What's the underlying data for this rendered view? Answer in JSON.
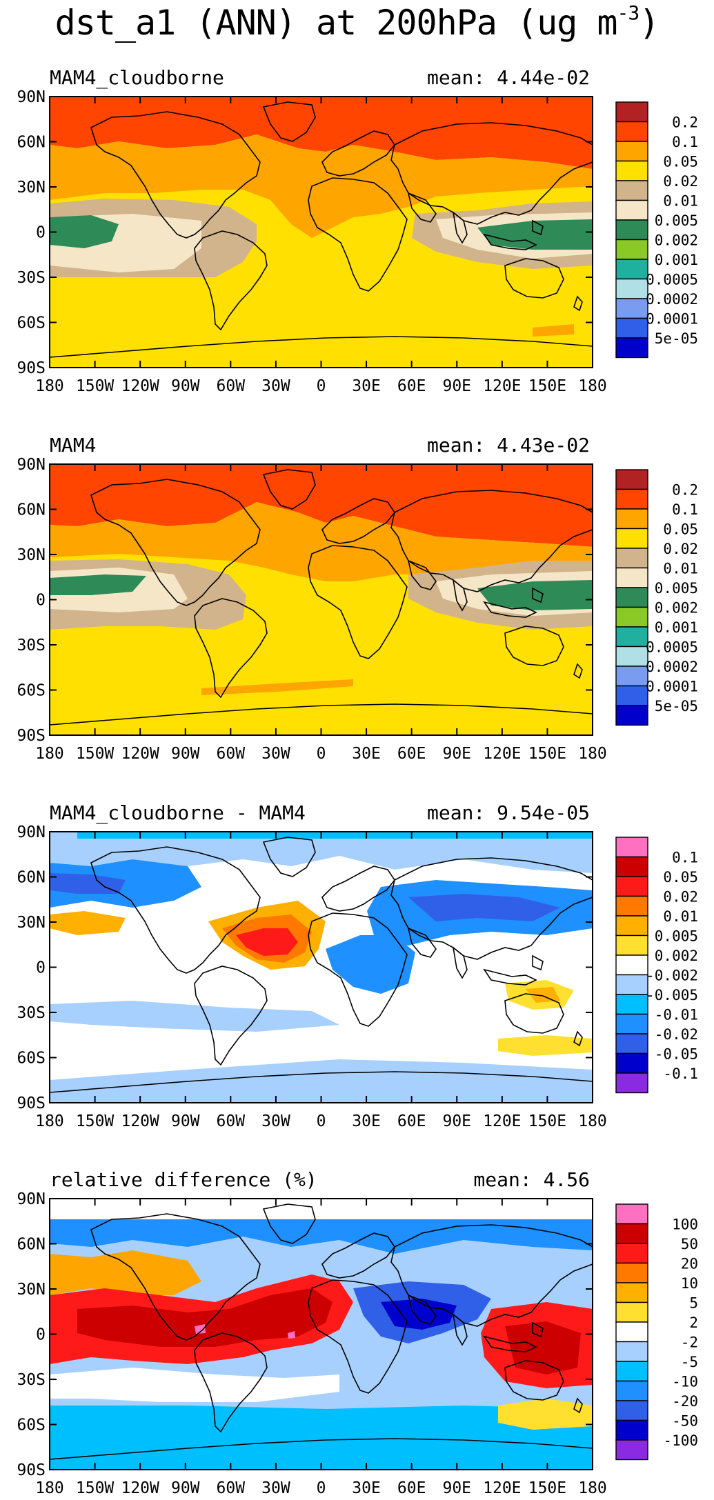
{
  "figure": {
    "title_main": "dst_a1 (ANN) at 200hPa (ug m",
    "title_sup": "-3",
    "title_close": ")"
  },
  "axes": {
    "lat_ticks": [
      "90N",
      "60N",
      "30N",
      "0",
      "30S",
      "60S",
      "90S"
    ],
    "lon_ticks": [
      "180",
      "150W",
      "120W",
      "90W",
      "60W",
      "30W",
      "0",
      "30E",
      "60E",
      "90E",
      "120E",
      "150E",
      "180"
    ]
  },
  "colors": {
    "conc": [
      "#0000cc",
      "#3060e8",
      "#7a9cf0",
      "#b0e0e6",
      "#1fb0a0",
      "#8ac926",
      "#2e8b57",
      "#f5e6c8",
      "#d2b48c",
      "#ffe000",
      "#ffa500",
      "#ff4500",
      "#b22222"
    ],
    "diff": [
      "#8a2be2",
      "#0000cc",
      "#3060e8",
      "#1e90ff",
      "#00bfff",
      "#a8d0ff",
      "#ffffff",
      "#ffe030",
      "#ffb000",
      "#ff7800",
      "#ff1a1a",
      "#cc0000",
      "#ff70c0"
    ]
  },
  "panels": [
    {
      "title": "MAM4_cloudborne",
      "mean": "mean: 4.44e-02",
      "colorbar_labels": [
        "0.2",
        "0.1",
        "0.05",
        "0.02",
        "0.01",
        "0.005",
        "0.002",
        "0.001",
        "0.0005",
        "0.0002",
        "0.0001",
        "5e-05"
      ]
    },
    {
      "title": "MAM4",
      "mean": "mean: 4.43e-02",
      "colorbar_labels": [
        "0.2",
        "0.1",
        "0.05",
        "0.02",
        "0.01",
        "0.005",
        "0.002",
        "0.001",
        "0.0005",
        "0.0002",
        "0.0001",
        "5e-05"
      ]
    },
    {
      "title": "MAM4_cloudborne - MAM4",
      "mean": "mean: 9.54e-05",
      "colorbar_labels": [
        "0.1",
        "0.05",
        "0.02",
        "0.01",
        "0.005",
        "0.002",
        "-0.002",
        "-0.005",
        "-0.01",
        "-0.02",
        "-0.05",
        "-0.1"
      ]
    },
    {
      "title": "relative difference (%)",
      "mean": "mean:   4.56",
      "colorbar_labels": [
        "100",
        "50",
        "20",
        "10",
        "5",
        "2",
        "-2",
        "-5",
        "-10",
        "-20",
        "-50",
        "-100"
      ]
    }
  ]
}
